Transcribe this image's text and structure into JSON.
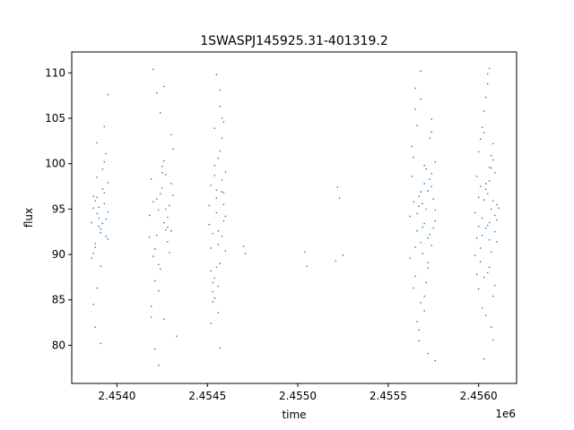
{
  "chart_data": {
    "type": "scatter",
    "title": "1SWASPJ145925.31-401319.2",
    "xlabel": "time",
    "ylabel": "flux",
    "x_offset_label": "1e6",
    "xlim": [
      2.45375,
      2.45621
    ],
    "ylim": [
      75.8,
      112.3
    ],
    "x_ticks": [
      2.454,
      2.4545,
      2.455,
      2.4555,
      2.456
    ],
    "x_tick_labels": [
      "2.4540",
      "2.4545",
      "2.4550",
      "2.4555",
      "2.4560"
    ],
    "y_ticks": [
      80,
      85,
      90,
      95,
      100,
      105,
      110
    ],
    "y_tick_labels": [
      "80",
      "85",
      "90",
      "95",
      "100",
      "105",
      "110"
    ],
    "grid": false,
    "point_color": "#1f77b4",
    "series": [
      {
        "x": [
          2.45386,
          2.45387,
          2.45388,
          2.45389,
          2.4539,
          2.45391,
          2.45392,
          2.45393,
          2.45394,
          2.45395,
          2.45387,
          2.45389,
          2.45391,
          2.45393,
          2.45395,
          2.45388,
          2.4539,
          2.45392,
          2.45394,
          2.45389,
          2.45386,
          2.45393,
          2.45391,
          2.45395,
          2.45387,
          2.45394,
          2.45388,
          2.4539,
          2.45392,
          2.45389,
          2.45387,
          2.45393,
          2.45395,
          2.45391,
          2.45389,
          2.45388,
          2.45418,
          2.4542,
          2.45422,
          2.45424,
          2.45426,
          2.45428,
          2.4543,
          2.45419,
          2.45421,
          2.45423,
          2.45425,
          2.45427,
          2.45429,
          2.45431,
          2.4542,
          2.45422,
          2.45424,
          2.45426,
          2.45428,
          2.45418,
          2.4543,
          2.45421,
          2.45425,
          2.45423,
          2.45427,
          2.45429,
          2.45419,
          2.45424,
          2.45426,
          2.45422,
          2.4542,
          2.45428,
          2.45431,
          2.45421,
          2.45425,
          2.4543,
          2.45423,
          2.45427,
          2.45433,
          2.45426,
          2.45423,
          2.45419,
          2.45451,
          2.45452,
          2.45453,
          2.45454,
          2.45455,
          2.45456,
          2.45457,
          2.45458,
          2.45459,
          2.4546,
          2.45452,
          2.45454,
          2.45456,
          2.45458,
          2.4546,
          2.45453,
          2.45455,
          2.45457,
          2.45459,
          2.45451,
          2.45454,
          2.45456,
          2.45458,
          2.45453,
          2.45455,
          2.45457,
          2.45452,
          2.45459,
          2.45456,
          2.45454,
          2.45458,
          2.45455,
          2.45457,
          2.45453,
          2.4546,
          2.45456,
          2.45452,
          2.45458,
          2.45454,
          2.45459,
          2.45457,
          2.45455,
          2.4547,
          2.45471,
          2.45504,
          2.45505,
          2.45522,
          2.45523,
          2.45525,
          2.45521,
          2.45562,
          2.45564,
          2.45566,
          2.45568,
          2.4557,
          2.45572,
          2.45574,
          2.45576,
          2.45563,
          2.45565,
          2.45567,
          2.45569,
          2.45571,
          2.45573,
          2.45575,
          2.45562,
          2.45564,
          2.45566,
          2.45568,
          2.4557,
          2.45572,
          2.45574,
          2.45576,
          2.45563,
          2.45565,
          2.45567,
          2.45569,
          2.45571,
          2.45573,
          2.45575,
          2.45564,
          2.45566,
          2.45568,
          2.4557,
          2.45572,
          2.45574,
          2.45566,
          2.45568,
          2.4557,
          2.45572,
          2.45574,
          2.45576,
          2.45565,
          2.45567,
          2.45569,
          2.45571,
          2.45573,
          2.45568,
          2.4557,
          2.45565,
          2.45572,
          2.45574,
          2.45576,
          2.45567,
          2.45598,
          2.456,
          2.45602,
          2.45604,
          2.45606,
          2.45608,
          2.4561,
          2.45599,
          2.45601,
          2.45603,
          2.45605,
          2.45607,
          2.45609,
          2.45611,
          2.45598,
          2.456,
          2.45602,
          2.45604,
          2.45606,
          2.45608,
          2.4561,
          2.45599,
          2.45601,
          2.45603,
          2.45605,
          2.45607,
          2.45609,
          2.456,
          2.45602,
          2.45604,
          2.45606,
          2.45608,
          2.4561,
          2.45601,
          2.45603,
          2.45605,
          2.45607,
          2.45609,
          2.45602,
          2.45604,
          2.45606,
          2.45608,
          2.45605,
          2.45607,
          2.45603,
          2.45609,
          2.45601,
          2.45606,
          2.45608,
          2.45599,
          2.45605,
          2.45604,
          2.45607,
          2.45603,
          2.45606,
          2.456
        ],
        "y": [
          93.5,
          95.1,
          91.2,
          96.3,
          94.0,
          92.8,
          97.2,
          95.6,
          93.9,
          94.7,
          90.1,
          98.5,
          92.4,
          96.8,
          91.7,
          95.9,
          93.1,
          99.4,
          92.0,
          94.5,
          89.6,
          100.2,
          88.7,
          97.9,
          96.4,
          101.1,
          90.8,
          95.2,
          93.4,
          86.3,
          84.5,
          104.1,
          107.6,
          80.2,
          102.3,
          82.0,
          94.3,
          95.8,
          92.1,
          96.7,
          93.5,
          91.4,
          97.8,
          98.3,
          90.6,
          94.9,
          99.0,
          92.7,
          95.4,
          101.6,
          89.8,
          96.1,
          88.4,
          100.3,
          93.0,
          91.9,
          103.2,
          87.1,
          97.3,
          86.0,
          98.8,
          90.2,
          84.3,
          105.6,
          82.9,
          107.8,
          110.4,
          94.1,
          96.5,
          79.6,
          99.7,
          92.6,
          88.9,
          95.0,
          81.0,
          108.5,
          77.8,
          83.1,
          95.4,
          97.6,
          92.3,
          99.8,
          94.6,
          91.1,
          101.4,
          96.9,
          93.7,
          90.4,
          88.2,
          98.7,
          86.5,
          102.8,
          94.2,
          85.9,
          97.1,
          89.0,
          104.6,
          93.3,
          87.4,
          100.6,
          92.0,
          84.8,
          96.2,
          106.3,
          90.7,
          95.5,
          83.6,
          103.9,
          98.2,
          88.6,
          108.1,
          86.9,
          99.1,
          92.6,
          82.4,
          105.0,
          85.2,
          96.8,
          79.7,
          109.8,
          90.9,
          90.1,
          90.3,
          88.7,
          97.4,
          96.2,
          89.9,
          89.3,
          94.2,
          95.8,
          92.6,
          96.9,
          93.4,
          91.8,
          97.5,
          94.9,
          98.6,
          90.8,
          95.3,
          93.0,
          99.4,
          92.2,
          96.1,
          89.6,
          100.7,
          94.5,
          91.3,
          97.8,
          88.5,
          98.9,
          93.7,
          101.9,
          87.6,
          96.4,
          90.1,
          95.0,
          102.8,
          92.9,
          86.3,
          104.2,
          84.7,
          99.8,
          89.1,
          103.5,
          82.6,
          107.1,
          85.4,
          97.0,
          91.0,
          100.2,
          108.3,
          80.5,
          95.6,
          86.9,
          98.3,
          110.2,
          83.8,
          106.0,
          79.1,
          104.9,
          78.3,
          81.7,
          94.6,
          96.3,
          92.1,
          97.8,
          93.5,
          95.9,
          91.4,
          98.6,
          90.7,
          96.0,
          93.2,
          99.5,
          92.5,
          95.1,
          89.9,
          101.3,
          94.0,
          97.2,
          88.6,
          100.4,
          93.8,
          91.8,
          102.7,
          87.5,
          96.7,
          90.3,
          99.0,
          86.2,
          104.0,
          92.9,
          98.1,
          85.4,
          95.5,
          89.2,
          105.8,
          88.0,
          100.9,
          94.3,
          84.1,
          107.3,
          91.6,
          102.2,
          109.9,
          82.0,
          103.4,
          86.6,
          97.5,
          99.6,
          80.6,
          87.8,
          108.8,
          83.3,
          95.0,
          78.5,
          110.5,
          93.1
        ]
      }
    ]
  }
}
